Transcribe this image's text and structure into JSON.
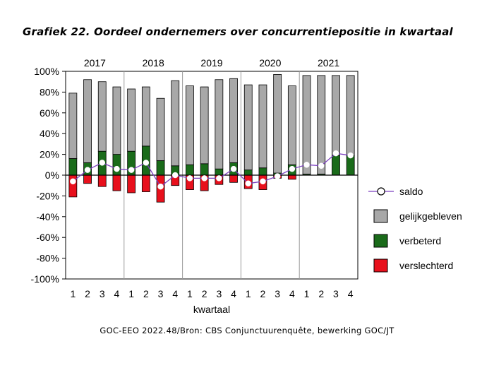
{
  "chart_data": {
    "type": "bar",
    "title": "Grafiek 22. Oordeel ondernemers over concurrentiepositie in kwartaal",
    "source": "GOC-EEO 2022.48/Bron: CBS Conjunctuurenquête, bewerking GOC/JT",
    "xlabel": "kwartaal",
    "years": [
      "2017",
      "2018",
      "2019",
      "2020",
      "2021"
    ],
    "quarters": [
      "1",
      "2",
      "3",
      "4"
    ],
    "categories": [
      "2017 1",
      "2017 2",
      "2017 3",
      "2017 4",
      "2018 1",
      "2018 2",
      "2018 3",
      "2018 4",
      "2019 1",
      "2019 2",
      "2019 3",
      "2019 4",
      "2020 1",
      "2020 2",
      "2020 3",
      "2020 4",
      "2021 1",
      "2021 2",
      "2021 3",
      "2021 4"
    ],
    "ylim": [
      -100,
      100
    ],
    "yticks": [
      100,
      80,
      60,
      40,
      20,
      0,
      -20,
      -40,
      -60,
      -80,
      -100
    ],
    "ytick_labels": [
      "100%",
      "80%",
      "60%",
      "40%",
      "20%",
      "0%",
      "-20%",
      "-40%",
      "-60%",
      "-80%",
      "-100%"
    ],
    "grid": false,
    "legend_position": "right",
    "series": [
      {
        "name": "saldo",
        "kind": "line",
        "color": "#7b3fbf",
        "values": [
          -6,
          5,
          12,
          6,
          5,
          12,
          -11,
          0,
          -3,
          -3,
          -3,
          6,
          -8,
          -6,
          -1,
          6,
          10,
          9,
          21,
          19
        ]
      },
      {
        "name": "gelijkgebleven",
        "kind": "bar",
        "color": "#a8a8a8",
        "values": [
          63,
          80,
          67,
          65,
          60,
          57,
          60,
          82,
          76,
          74,
          86,
          81,
          82,
          80,
          95,
          76,
          95,
          95,
          77,
          77
        ]
      },
      {
        "name": "verbeterd",
        "kind": "bar",
        "color": "#1a6b1a",
        "values": [
          16,
          12,
          23,
          20,
          23,
          28,
          14,
          9,
          10,
          11,
          6,
          12,
          5,
          7,
          2,
          10,
          1,
          1,
          19,
          19
        ]
      },
      {
        "name": "verslechterd",
        "kind": "bar",
        "color": "#e8101c",
        "values": [
          -21,
          -8,
          -11,
          -15,
          -17,
          -16,
          -26,
          -10,
          -14,
          -15,
          -9,
          -7,
          -13,
          -14,
          -3,
          -4,
          0,
          0,
          0,
          0
        ]
      }
    ]
  }
}
